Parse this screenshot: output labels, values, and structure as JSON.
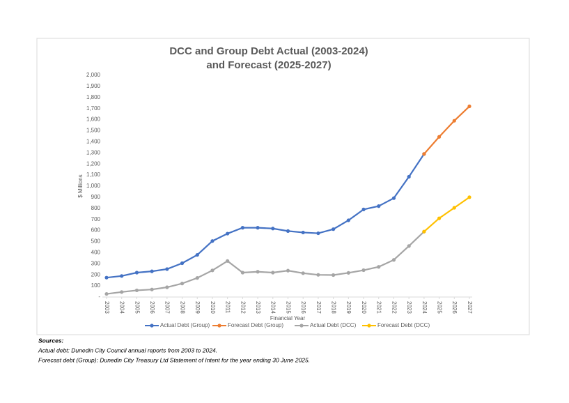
{
  "chart_data": {
    "type": "line",
    "title": [
      "DCC and Group Debt Actual (2003-2024)",
      "and Forecast (2025-2027)"
    ],
    "y_label": "$ Millions",
    "x_label": "Financial Year",
    "categories": [
      "2003",
      "2004",
      "2005",
      "2006",
      "2007",
      "2008",
      "2009",
      "2010",
      "2011",
      "2012",
      "2013",
      "2014",
      "2015",
      "2016",
      "2017",
      "2018",
      "2019",
      "2020",
      "2021",
      "2022",
      "2023",
      "2024",
      "2025",
      "2026",
      "2027"
    ],
    "series": [
      {
        "name": "Actual Debt (Group)",
        "color": "#4472c4",
        "values": [
          175,
          190,
          220,
          232,
          252,
          305,
          380,
          505,
          572,
          625,
          625,
          618,
          595,
          582,
          575,
          612,
          692,
          790,
          820,
          892,
          1085,
          1290,
          null,
          null,
          null
        ]
      },
      {
        "name": "Forecast Debt (Group)",
        "color": "#ed7d31",
        "values": [
          null,
          null,
          null,
          null,
          null,
          null,
          null,
          null,
          null,
          null,
          null,
          null,
          null,
          null,
          null,
          null,
          null,
          null,
          null,
          null,
          null,
          1290,
          1445,
          1590,
          1720
        ]
      },
      {
        "name": "Actual Debt (DCC)",
        "color": "#a5a5a5",
        "values": [
          28,
          45,
          60,
          68,
          88,
          122,
          172,
          240,
          325,
          220,
          228,
          220,
          238,
          215,
          200,
          198,
          218,
          242,
          272,
          335,
          460,
          590,
          null,
          null,
          null
        ]
      },
      {
        "name": "Forecast Debt (DCC)",
        "color": "#ffc000",
        "values": [
          null,
          null,
          null,
          null,
          null,
          null,
          null,
          null,
          null,
          null,
          null,
          null,
          null,
          null,
          null,
          null,
          null,
          null,
          null,
          null,
          null,
          590,
          710,
          805,
          900
        ]
      }
    ],
    "ylim": [
      0,
      2000
    ],
    "yticks": [
      {
        "value": 0,
        "label": "-"
      },
      100,
      200,
      300,
      400,
      500,
      600,
      700,
      800,
      900,
      {
        "value": 1000,
        "label": "1,000"
      },
      {
        "value": 1100,
        "label": "1,100"
      },
      {
        "value": 1200,
        "label": "1,200"
      },
      {
        "value": 1300,
        "label": "1,300"
      },
      {
        "value": 1400,
        "label": "1,400"
      },
      {
        "value": 1500,
        "label": "1,500"
      },
      {
        "value": 1600,
        "label": "1,600"
      },
      {
        "value": 1700,
        "label": "1,700"
      },
      {
        "value": 1800,
        "label": "1,800"
      },
      {
        "value": 1900,
        "label": "1,900"
      },
      {
        "value": 2000,
        "label": "2,000"
      }
    ],
    "grid": false,
    "legend": "bottom"
  },
  "notes": {
    "heading": "Sources:",
    "lines": [
      "Actual debt: Dunedin City Council annual reports from 2003 to 2024.",
      "Forecast debt (Group): Dunedin City Treasury Ltd Statement of Intent for the year ending 30 June 2025."
    ]
  }
}
